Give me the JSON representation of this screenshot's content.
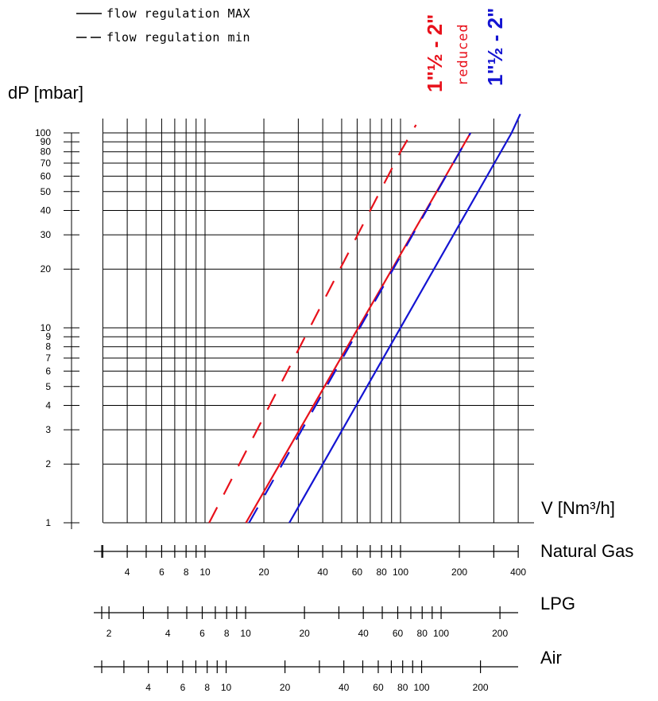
{
  "chart_data": {
    "type": "line",
    "log_log": true,
    "ylabel": "dP [mbar]",
    "xlabel": "V [Nm³/h]",
    "ylim": [
      1,
      100
    ],
    "xlim_natural_gas": [
      2.6,
      420
    ],
    "grid": true,
    "legend": [
      {
        "label": "flow regulation MAX",
        "style": "solid"
      },
      {
        "label": "flow regulation min",
        "style": "dashed"
      }
    ],
    "y_ticks": [
      "1",
      "2",
      "3",
      "4",
      "5",
      "6",
      "7",
      "8",
      "9",
      "10",
      "20",
      "30",
      "40",
      "50",
      "60",
      "70",
      "80",
      "90",
      "100"
    ],
    "x_gridlines": [
      3,
      4,
      5,
      6,
      7,
      8,
      9,
      10,
      20,
      30,
      40,
      50,
      60,
      70,
      80,
      90,
      100,
      200,
      300,
      400
    ],
    "series": [
      {
        "name": "1\"½ - 2\" reduced",
        "color": "#e8111b",
        "max_points": [
          [
            16.2,
            1
          ],
          [
            228,
            100
          ]
        ],
        "min_points": [
          [
            10.5,
            1
          ],
          [
            100,
            80
          ],
          [
            120,
            110
          ]
        ]
      },
      {
        "name": "1\"½ - 2\"",
        "color": "#1414d2",
        "max_points": [
          [
            27,
            1
          ],
          [
            370,
            100
          ],
          [
            410,
            125
          ]
        ],
        "min_points": [
          [
            16.8,
            1
          ],
          [
            228,
            100
          ]
        ]
      }
    ],
    "gas_scales": [
      {
        "name": "Natural Gas",
        "labels": [
          "4",
          "6",
          "8",
          "10",
          "20",
          "40",
          "60",
          "80",
          "100",
          "200",
          "400"
        ],
        "values": [
          4,
          6,
          8,
          10,
          20,
          40,
          60,
          80,
          100,
          200,
          400
        ],
        "ticks": [
          3,
          4,
          5,
          6,
          7,
          8,
          9,
          10,
          20,
          30,
          40,
          50,
          60,
          70,
          80,
          90,
          100,
          200,
          300,
          400
        ],
        "factor": 1
      },
      {
        "name": "LPG",
        "labels": [
          "2",
          "4",
          "6",
          "8",
          "10",
          "20",
          "40",
          "60",
          "80",
          "100",
          "200"
        ],
        "values": [
          2,
          4,
          6,
          8,
          10,
          20,
          40,
          60,
          80,
          100,
          200
        ],
        "ticks": [
          2,
          3,
          4,
          5,
          6,
          7,
          8,
          9,
          10,
          20,
          30,
          40,
          50,
          60,
          70,
          80,
          90,
          100,
          200
        ],
        "factor": 0.62
      },
      {
        "name": "Air",
        "labels": [
          "4",
          "6",
          "8",
          "10",
          "20",
          "40",
          "60",
          "80",
          "100",
          "200"
        ],
        "values": [
          4,
          6,
          8,
          10,
          20,
          40,
          60,
          80,
          100,
          200
        ],
        "ticks": [
          3,
          4,
          5,
          6,
          7,
          8,
          9,
          10,
          20,
          30,
          40,
          50,
          60,
          70,
          80,
          90,
          100,
          200
        ],
        "factor": 0.78
      }
    ]
  }
}
